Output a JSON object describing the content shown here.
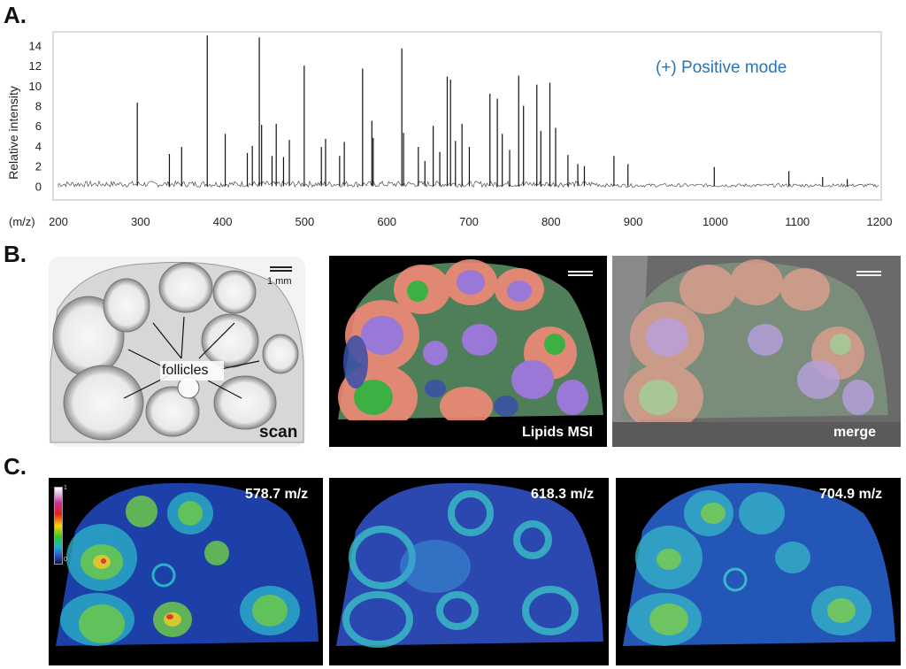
{
  "panels": {
    "a": "A.",
    "b": "B.",
    "c": "C."
  },
  "chart_data": {
    "type": "bar",
    "ylabel": "Relative intensity",
    "xlabel": "(m/z)",
    "annotation": "(+) Positive mode",
    "xlim": [
      200,
      1200
    ],
    "ylim": [
      -0.5,
      15
    ],
    "xticks": [
      200,
      300,
      400,
      500,
      600,
      700,
      800,
      900,
      1000,
      1100,
      1200
    ],
    "yticks": [
      0,
      2,
      4,
      6,
      8,
      10,
      12,
      14
    ],
    "x": [
      296.1,
      335.2,
      350.1,
      381.3,
      403.2,
      430.1,
      436.2,
      444.7,
      447.5,
      460.2,
      465.3,
      474.2,
      481.3,
      499.4,
      520.3,
      525.4,
      542.5,
      548.2,
      570.5,
      581.8,
      583.4,
      618.3,
      620.4,
      638.4,
      646.4,
      656.5,
      664.5,
      673.6,
      677.6,
      683.6,
      691.6,
      700.5,
      725.6,
      734.6,
      740.6,
      749.6,
      760.6,
      766.5,
      782.7,
      787.6,
      798.6,
      805.6,
      820.6,
      832.6,
      840.6,
      876.6,
      893.7,
      998.8,
      1089.7,
      1130.8,
      1160.8
    ],
    "values": [
      8.3,
      3.2,
      3.9,
      15.0,
      5.2,
      3.3,
      4.0,
      14.8,
      6.1,
      3.0,
      6.2,
      2.9,
      4.6,
      12.0,
      3.9,
      4.7,
      3.0,
      4.4,
      11.7,
      6.5,
      4.8,
      13.7,
      5.3,
      3.9,
      2.5,
      6.0,
      3.4,
      10.9,
      10.6,
      4.5,
      6.2,
      3.9,
      9.2,
      8.7,
      5.2,
      3.6,
      11.0,
      8.0,
      10.1,
      5.5,
      10.3,
      5.8,
      3.1,
      2.2,
      2.0,
      3.0,
      2.2,
      1.9,
      1.5,
      0.9,
      0.7
    ]
  },
  "panel_b": {
    "scan_label": "scan",
    "follicles_label": "follicles",
    "scale_label": "1 mm",
    "msi_label": "Lipids MSI",
    "merge_label": "merge"
  },
  "panel_c": {
    "images": [
      {
        "mz": "578.7 m/z"
      },
      {
        "mz": "618.3 m/z"
      },
      {
        "mz": "704.9 m/z"
      }
    ],
    "colorbar_top": "1",
    "colorbar_bottom": "0"
  }
}
